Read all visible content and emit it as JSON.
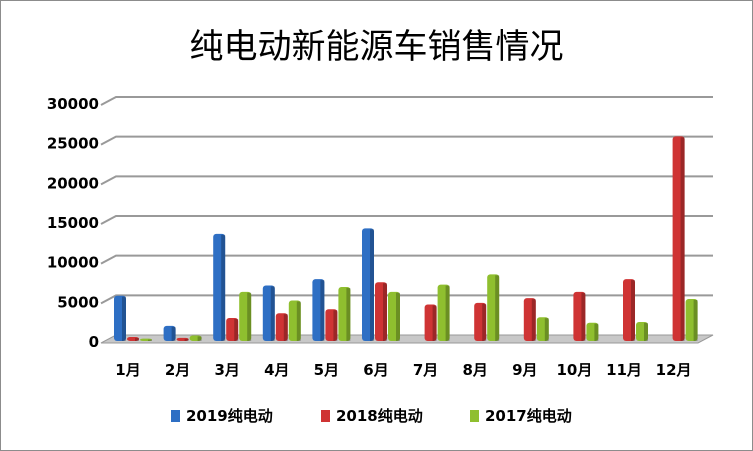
{
  "chart_data": {
    "type": "bar",
    "title": "纯电动新能源车销售情况",
    "categories": [
      "1月",
      "2月",
      "3月",
      "4月",
      "5月",
      "6月",
      "7月",
      "8月",
      "9月",
      "10月",
      "11月",
      "12月"
    ],
    "series": [
      {
        "name": "2019纯电动",
        "color": "#2e6fc4",
        "values": [
          5700,
          1900,
          13500,
          7000,
          7800,
          14200,
          null,
          null,
          null,
          null,
          null,
          null
        ]
      },
      {
        "name": "2018纯电动",
        "color": "#cf3434",
        "values": [
          500,
          400,
          2900,
          3500,
          4000,
          7400,
          4600,
          4800,
          5400,
          6200,
          7800,
          25800
        ]
      },
      {
        "name": "2017纯电动",
        "color": "#8fbf2f",
        "values": [
          300,
          700,
          6200,
          5100,
          6800,
          6200,
          7100,
          8400,
          3000,
          2300,
          2400,
          5300
        ]
      }
    ],
    "ylim": [
      0,
      30000
    ],
    "yticks": [
      "0",
      "5000",
      "10000",
      "15000",
      "20000",
      "25000",
      "30000"
    ],
    "grid": true,
    "legend": "bottom",
    "xlabel": "",
    "ylabel": ""
  }
}
